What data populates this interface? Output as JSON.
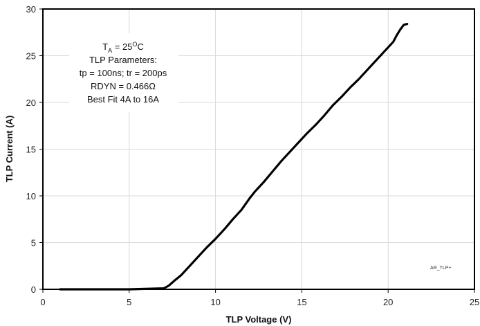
{
  "chart_data": {
    "type": "line",
    "xlabel": "TLP Voltage (V)",
    "ylabel": "TLP Current (A)",
    "xlim": [
      0,
      25
    ],
    "ylim": [
      0,
      30
    ],
    "xticks": [
      0,
      5,
      10,
      15,
      20,
      25
    ],
    "yticks": [
      0,
      5,
      10,
      15,
      20,
      25,
      30
    ],
    "grid": true,
    "legend": "none",
    "series": [
      {
        "color": "#000000",
        "x": [
          1.0,
          5.0,
          7.0,
          7.3,
          7.6,
          8.0,
          8.5,
          9.0,
          9.5,
          10.0,
          10.5,
          11.0,
          11.5,
          12.0,
          12.3,
          12.8,
          13.3,
          13.8,
          14.3,
          14.8,
          15.3,
          15.8,
          16.3,
          16.8,
          17.3,
          17.8,
          18.3,
          18.8,
          19.3,
          19.8,
          20.3,
          20.5,
          20.7,
          20.9,
          21.1
        ],
        "y": [
          0,
          0,
          0.1,
          0.4,
          0.9,
          1.5,
          2.5,
          3.5,
          4.5,
          5.4,
          6.4,
          7.5,
          8.5,
          9.8,
          10.5,
          11.5,
          12.6,
          13.7,
          14.7,
          15.7,
          16.7,
          17.6,
          18.6,
          19.7,
          20.6,
          21.6,
          22.5,
          23.5,
          24.5,
          25.5,
          26.5,
          27.2,
          27.8,
          28.3,
          28.4
        ]
      }
    ],
    "annotations": {
      "line1_main": "T",
      "line1_sub": "A",
      "line1_rest": " = 25",
      "line1_sup": "O",
      "line1_end": "C",
      "line2": "TLP Parameters:",
      "line3": "tp = 100ns; tr = 200ps",
      "line4": "RDYN = 0.466Ω",
      "line5": "Best Fit 4A to 16A"
    },
    "figure_tag": "AR_TLP+"
  }
}
